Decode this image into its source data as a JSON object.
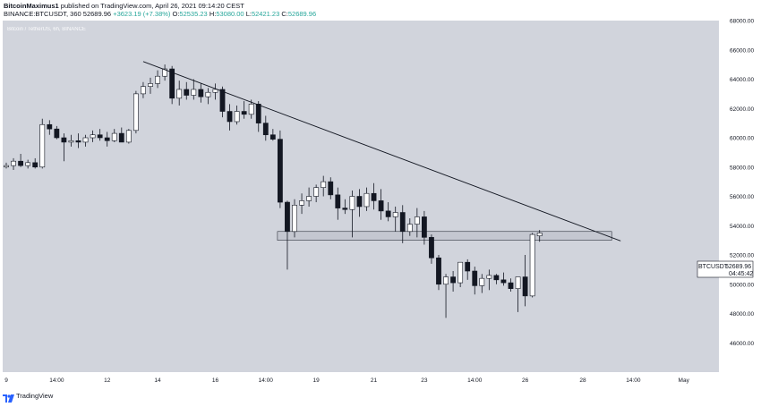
{
  "header": {
    "author": "BitcoinMaximus1",
    "published_text": "published on TradingView.com, April 26, 2021 09:14:20 CEST",
    "symbol_line": "BINANCE:BTCUSDT, 360",
    "price": "52689.96",
    "change": "+3623.19 (+7.38%)",
    "o_label": "O:",
    "o_value": "52535.23",
    "h_label": "H:",
    "h_value": "53080.00",
    "l_label": "L:",
    "l_value": "52421.23",
    "c_label": "C:",
    "c_value": "52689.96"
  },
  "symbol_title": "Bitcoin / TetherUS, 6h, BINANCE",
  "price_tag": {
    "symbol": "BTCUSDT",
    "price": "52689.96",
    "countdown": "04:45:42"
  },
  "footer": {
    "brand": "TradingView"
  },
  "colors": {
    "background": "#d1d4dc",
    "up_body": "#ffffff",
    "down_body": "#131722",
    "wick": "#131722",
    "trendline": "#131722",
    "zone": "#bfc2ca"
  },
  "chart_data": {
    "type": "candlestick",
    "title": "Bitcoin / TetherUS, 6h, BINANCE",
    "ylim": [
      44000,
      68000
    ],
    "y_ticks": [
      "68000.00",
      "66000.00",
      "64000.00",
      "62000.00",
      "60000.00",
      "58000.00",
      "56000.00",
      "54000.00",
      "52000.00",
      "50000.00",
      "48000.00",
      "46000.00"
    ],
    "x_tick_labels": [
      "9",
      "14:00",
      "12",
      "14",
      "16",
      "14:00",
      "19",
      "21",
      "23",
      "14:00",
      "26",
      "28",
      "14:00",
      "May"
    ],
    "x_tick_index": [
      0,
      7,
      14,
      21,
      29,
      36,
      43,
      51,
      58,
      65,
      72,
      80,
      87,
      94
    ],
    "candles": [
      [
        58000,
        58300,
        57900,
        58100
      ],
      [
        58100,
        58600,
        57800,
        58400
      ],
      [
        58400,
        58900,
        58000,
        58100
      ],
      [
        58100,
        58500,
        57900,
        58300
      ],
      [
        58300,
        58600,
        57900,
        58000
      ],
      [
        58000,
        61300,
        57900,
        60900
      ],
      [
        60900,
        61200,
        60200,
        60600
      ],
      [
        60600,
        60800,
        59900,
        60000
      ],
      [
        60000,
        60300,
        58400,
        59700
      ],
      [
        59700,
        60200,
        59400,
        59800
      ],
      [
        59800,
        60300,
        59300,
        59700
      ],
      [
        59700,
        60200,
        59400,
        60000
      ],
      [
        60000,
        60500,
        59700,
        60200
      ],
      [
        60200,
        60600,
        59800,
        60000
      ],
      [
        60000,
        60400,
        59400,
        59800
      ],
      [
        59800,
        60600,
        59700,
        60300
      ],
      [
        60300,
        60700,
        59800,
        59700
      ],
      [
        59700,
        60600,
        59600,
        60500
      ],
      [
        60500,
        63200,
        60300,
        63000
      ],
      [
        63000,
        63800,
        62700,
        63500
      ],
      [
        63500,
        64100,
        63000,
        63700
      ],
      [
        63700,
        64600,
        63400,
        64200
      ],
      [
        64200,
        65000,
        63900,
        64700
      ],
      [
        64700,
        64900,
        62300,
        62700
      ],
      [
        62700,
        63900,
        62200,
        63300
      ],
      [
        63300,
        63800,
        62600,
        62900
      ],
      [
        62900,
        64000,
        62600,
        63300
      ],
      [
        63300,
        63700,
        62400,
        62800
      ],
      [
        62800,
        63400,
        62300,
        63100
      ],
      [
        63100,
        63700,
        62600,
        63300
      ],
      [
        63300,
        63500,
        61400,
        61800
      ],
      [
        61800,
        62300,
        60500,
        61100
      ],
      [
        61100,
        62200,
        60900,
        61800
      ],
      [
        61800,
        62500,
        61300,
        61600
      ],
      [
        61600,
        62600,
        61300,
        62300
      ],
      [
        62300,
        62500,
        60400,
        61000
      ],
      [
        61000,
        61500,
        59800,
        60200
      ],
      [
        60200,
        60600,
        59800,
        59900
      ],
      [
        59900,
        60500,
        55200,
        55600
      ],
      [
        55600,
        55700,
        51000,
        53600
      ],
      [
        53600,
        55800,
        53200,
        55400
      ],
      [
        55400,
        56200,
        54800,
        55700
      ],
      [
        55700,
        56600,
        55300,
        56000
      ],
      [
        56000,
        56800,
        55600,
        56600
      ],
      [
        56600,
        57400,
        56000,
        57000
      ],
      [
        57000,
        57300,
        55800,
        56100
      ],
      [
        56100,
        56600,
        54400,
        55200
      ],
      [
        55200,
        55800,
        54800,
        55100
      ],
      [
        55100,
        56400,
        53200,
        56000
      ],
      [
        56000,
        56500,
        54600,
        55300
      ],
      [
        55300,
        56600,
        55000,
        56200
      ],
      [
        56200,
        56900,
        55100,
        55700
      ],
      [
        55700,
        56500,
        54400,
        55000
      ],
      [
        55000,
        55600,
        54300,
        54600
      ],
      [
        54600,
        55300,
        53600,
        54900
      ],
      [
        54900,
        55400,
        52800,
        53600
      ],
      [
        53600,
        54500,
        53300,
        54100
      ],
      [
        54100,
        55200,
        53200,
        54600
      ],
      [
        54600,
        55000,
        52700,
        53200
      ],
      [
        53200,
        53400,
        51400,
        51800
      ],
      [
        51800,
        52000,
        49600,
        50000
      ],
      [
        50000,
        50700,
        47700,
        50500
      ],
      [
        50500,
        50900,
        49500,
        50100
      ],
      [
        50100,
        51500,
        49800,
        51500
      ],
      [
        51500,
        51700,
        50300,
        50900
      ],
      [
        50900,
        51200,
        49300,
        49900
      ],
      [
        49900,
        50700,
        49400,
        50400
      ],
      [
        50400,
        51000,
        49600,
        50600
      ],
      [
        50600,
        50700,
        50000,
        50300
      ],
      [
        50300,
        50800,
        49900,
        50100
      ],
      [
        50100,
        50400,
        49500,
        49700
      ],
      [
        49700,
        50300,
        48100,
        50500
      ],
      [
        50500,
        52000,
        48500,
        49200
      ],
      [
        49200,
        53500,
        49100,
        53400
      ],
      [
        53300,
        53700,
        52900,
        53500
      ]
    ],
    "trendline": {
      "from": [
        19,
        65200
      ],
      "to": [
        84,
        53200
      ]
    },
    "zone": {
      "x_from": 38,
      "x_to": 84,
      "y_from": 53000,
      "y_to": 53600
    }
  }
}
